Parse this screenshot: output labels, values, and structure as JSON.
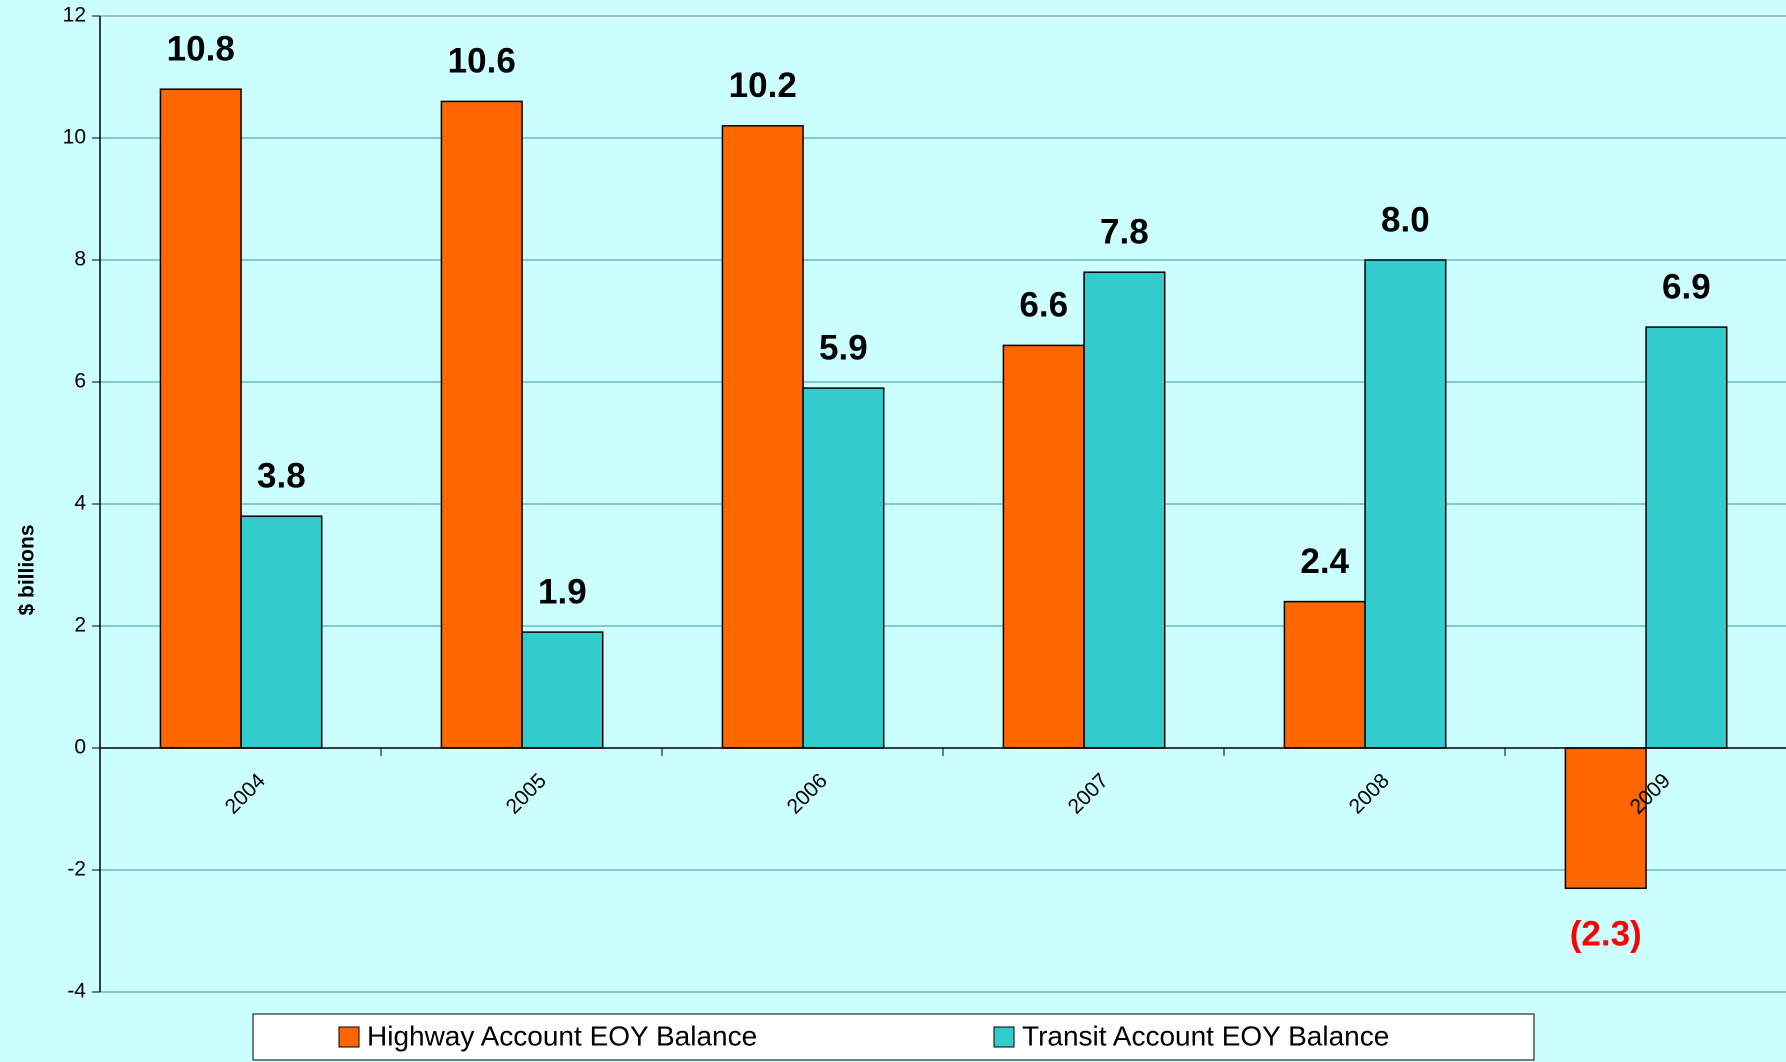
{
  "chart_data": {
    "type": "bar",
    "y_label": "$ billions",
    "categories": [
      "2004",
      "2005",
      "2006",
      "2007",
      "2008",
      "2009"
    ],
    "series": [
      {
        "name": "Highway Account EOY Balance",
        "color": "#ff6600",
        "values": [
          10.8,
          10.6,
          10.2,
          6.6,
          2.4,
          -2.3
        ],
        "value_labels": [
          "10.8",
          "10.6",
          "10.2",
          "6.6",
          "2.4",
          "(2.3)"
        ]
      },
      {
        "name": "Transit Account EOY Balance",
        "color": "#33cccc",
        "values": [
          3.8,
          1.9,
          5.9,
          7.8,
          8.0,
          6.9
        ],
        "value_labels": [
          "3.8",
          "1.9",
          "5.9",
          "7.8",
          "8.0",
          "6.9"
        ]
      }
    ],
    "ylim": [
      -4,
      12
    ],
    "yticks": [
      -4,
      -2,
      0,
      2,
      4,
      6,
      8,
      10,
      12
    ],
    "grid": true,
    "negative_label_color": "#ff0000",
    "legend": "bottom"
  }
}
